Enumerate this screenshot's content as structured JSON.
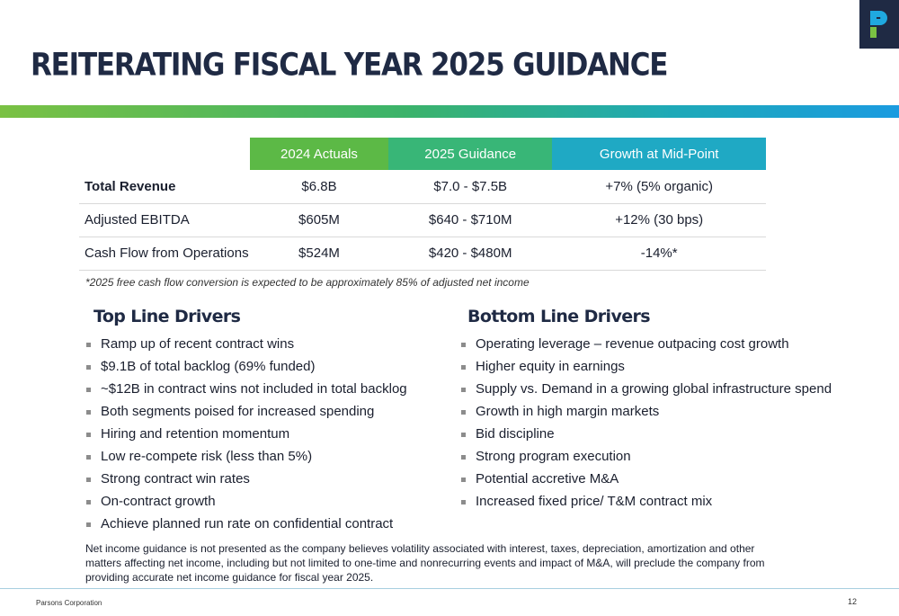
{
  "header": {
    "title": "REITERATING FISCAL YEAR 2025 GUIDANCE",
    "logo_icon": "parsons-p-logo",
    "logo_bg": "#1f2a44"
  },
  "table": {
    "columns": [
      "2024 Actuals",
      "2025 Guidance",
      "Growth at Mid-Point"
    ],
    "rows": [
      {
        "label": "Total Revenue",
        "actuals": "$6.8B",
        "guidance": "$7.0 - $7.5B",
        "growth": "+7% (5% organic)"
      },
      {
        "label": "Adjusted EBITDA",
        "actuals": "$605M",
        "guidance": "$640 - $710M",
        "growth": "+12% (30 bps)"
      },
      {
        "label": "Cash Flow from Operations",
        "actuals": "$524M",
        "guidance": "$420 - $480M",
        "growth": "-14%*"
      }
    ],
    "footnote": "*2025 free cash flow conversion is expected to be approximately 85% of adjusted net income"
  },
  "top_line": {
    "heading": "Top Line Drivers",
    "items": [
      "Ramp up of recent contract wins",
      "$9.1B of total backlog (69% funded)",
      "~$12B in contract wins not included in total backlog",
      "Both segments poised for increased spending",
      "Hiring and retention momentum",
      "Low re-compete risk (less than 5%)",
      "Strong contract win rates",
      "On-contract growth",
      "Achieve planned run rate on confidential contract"
    ]
  },
  "bottom_line": {
    "heading": "Bottom Line Drivers",
    "items": [
      "Operating leverage – revenue outpacing cost growth",
      "Higher equity in earnings",
      "Supply vs. Demand in a growing global infrastructure spend",
      "Growth in high margin markets",
      "Bid discipline",
      "Strong program execution",
      "Potential accretive M&A",
      "Increased fixed price/ T&M contract mix"
    ]
  },
  "disclaimer": "Net income guidance is not presented as the company believes volatility associated with interest, taxes, depreciation, amortization and other matters affecting net income, including but not limited to one-time and nonrecurring events and impact of M&A, will preclude the company from providing accurate net income guidance for fiscal year 2025.",
  "footer": {
    "company": "Parsons Corporation",
    "page_number": "12"
  }
}
